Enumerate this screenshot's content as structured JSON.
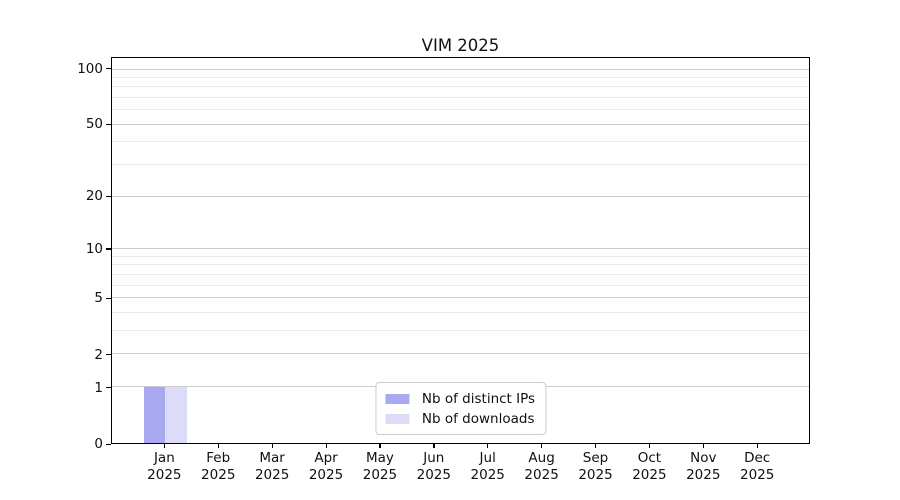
{
  "chart_data": {
    "type": "bar",
    "title": "VIM 2025",
    "categories": [
      "Jan",
      "Feb",
      "Mar",
      "Apr",
      "May",
      "Jun",
      "Jul",
      "Aug",
      "Sep",
      "Oct",
      "Nov",
      "Dec"
    ],
    "x_tick_second_line": "2025",
    "series": [
      {
        "name": "Nb of distinct IPs",
        "color": "#a9a9f1",
        "values": [
          1,
          0,
          0,
          0,
          0,
          0,
          0,
          0,
          0,
          0,
          0,
          0
        ]
      },
      {
        "name": "Nb of downloads",
        "color": "#dcdcf8",
        "values": [
          1,
          0,
          0,
          0,
          0,
          0,
          0,
          0,
          0,
          0,
          0,
          0
        ]
      }
    ],
    "y_axis": {
      "scale": "log1p",
      "major_ticks": [
        0,
        1,
        2,
        5,
        10,
        20,
        50,
        100
      ],
      "minor_gridlines": [
        3,
        4,
        6,
        7,
        8,
        9,
        30,
        40,
        60,
        70,
        80,
        90
      ],
      "ylim": [
        0,
        115
      ]
    },
    "grid": "on",
    "legend_position": "lower center",
    "colors": {
      "major_grid": "#cccccc",
      "minor_grid": "#ebebeb",
      "spine": "#000000",
      "text": "#111111",
      "background": "#ffffff"
    }
  }
}
